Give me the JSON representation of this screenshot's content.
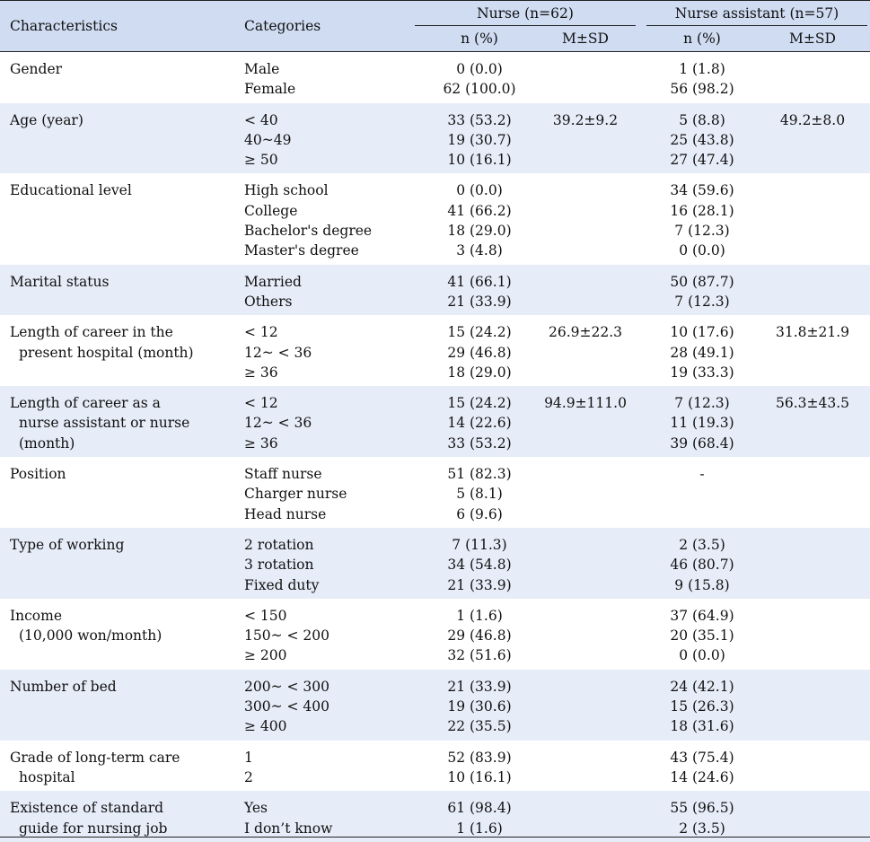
{
  "header": {
    "characteristics": "Characteristics",
    "categories": "Categories",
    "nurse_group": "Nurse (n=62)",
    "assistant_group": "Nurse assistant (n=57)",
    "n_pct": "n (%)",
    "msd": "M±SD"
  },
  "rows": [
    {
      "char": [
        "Gender"
      ],
      "cats": [
        "Male",
        "Female"
      ],
      "nurse_n": [
        "0 (0.0)",
        "62 (100.0)"
      ],
      "nurse_msd": "",
      "asst_n": [
        "1 (1.8)",
        "56 (98.2)"
      ],
      "asst_msd": ""
    },
    {
      "char": [
        "Age (year)"
      ],
      "cats": [
        "< 40",
        "40~49",
        "≥ 50"
      ],
      "nurse_n": [
        "33 (53.2)",
        "19 (30.7)",
        "10 (16.1)"
      ],
      "nurse_msd": "39.2±9.2",
      "asst_n": [
        "5 (8.8)",
        "25 (43.8)",
        "27 (47.4)"
      ],
      "asst_msd": "49.2±8.0"
    },
    {
      "char": [
        "Educational level"
      ],
      "cats": [
        "High school",
        "College",
        "Bachelor's degree",
        "Master's degree"
      ],
      "nurse_n": [
        "0 (0.0)",
        "41 (66.2)",
        "18 (29.0)",
        "3 (4.8)"
      ],
      "nurse_msd": "",
      "asst_n": [
        "34 (59.6)",
        "16 (28.1)",
        "7 (12.3)",
        "0 (0.0)"
      ],
      "asst_msd": ""
    },
    {
      "char": [
        "Marital status"
      ],
      "cats": [
        "Married",
        "Others"
      ],
      "nurse_n": [
        "41 (66.1)",
        "21 (33.9)"
      ],
      "nurse_msd": "",
      "asst_n": [
        "50 (87.7)",
        "7 (12.3)"
      ],
      "asst_msd": ""
    },
    {
      "char": [
        "Length of career in the",
        "present hospital (month)"
      ],
      "cats": [
        "< 12",
        "12~ < 36",
        "≥ 36"
      ],
      "nurse_n": [
        "15 (24.2)",
        "29 (46.8)",
        "18 (29.0)"
      ],
      "nurse_msd": "26.9±22.3",
      "asst_n": [
        "10 (17.6)",
        "28 (49.1)",
        "19 (33.3)"
      ],
      "asst_msd": "31.8±21.9"
    },
    {
      "char": [
        "Length of career as a",
        "nurse assistant or nurse",
        "(month)"
      ],
      "cats": [
        "< 12",
        "12~ < 36",
        "≥ 36"
      ],
      "nurse_n": [
        "15 (24.2)",
        "14 (22.6)",
        "33 (53.2)"
      ],
      "nurse_msd": "94.9±111.0",
      "asst_n": [
        "7 (12.3)",
        "11 (19.3)",
        "39 (68.4)"
      ],
      "asst_msd": "56.3±43.5"
    },
    {
      "char": [
        "Position"
      ],
      "cats": [
        "Staff nurse",
        "Charger nurse",
        "Head nurse"
      ],
      "nurse_n": [
        "51 (82.3)",
        "5 (8.1)",
        "6 (9.6)"
      ],
      "nurse_msd": "",
      "asst_n": [
        "-"
      ],
      "asst_msd": ""
    },
    {
      "char": [
        "Type of working"
      ],
      "cats": [
        "2 rotation",
        "3 rotation",
        "Fixed duty"
      ],
      "nurse_n": [
        "7 (11.3)",
        "34 (54.8)",
        "21 (33.9)"
      ],
      "nurse_msd": "",
      "asst_n": [
        "2 (3.5)",
        "46 (80.7)",
        "9 (15.8)"
      ],
      "asst_msd": ""
    },
    {
      "char": [
        "Income",
        "(10,000 won/month)"
      ],
      "cats": [
        "< 150",
        "150~ < 200",
        "≥ 200"
      ],
      "nurse_n": [
        "1 (1.6)",
        "29 (46.8)",
        "32 (51.6)"
      ],
      "nurse_msd": "",
      "asst_n": [
        "37 (64.9)",
        "20 (35.1)",
        "0 (0.0)"
      ],
      "asst_msd": ""
    },
    {
      "char": [
        "Number of bed"
      ],
      "cats": [
        "200~ < 300",
        "300~ < 400",
        "≥ 400"
      ],
      "nurse_n": [
        "21 (33.9)",
        "19 (30.6)",
        "22 (35.5)"
      ],
      "nurse_msd": "",
      "asst_n": [
        "24 (42.1)",
        "15 (26.3)",
        "18 (31.6)"
      ],
      "asst_msd": ""
    },
    {
      "char": [
        "Grade of long-term care",
        "hospital"
      ],
      "cats": [
        "1",
        "2"
      ],
      "nurse_n": [
        "52 (83.9)",
        "10 (16.1)"
      ],
      "nurse_msd": "",
      "asst_n": [
        "43 (75.4)",
        "14 (24.6)"
      ],
      "asst_msd": ""
    },
    {
      "char": [
        "Existence of standard",
        "guide for nursing job"
      ],
      "cats": [
        "Yes",
        "I don’t know"
      ],
      "nurse_n": [
        "61 (98.4)",
        "1 (1.6)"
      ],
      "nurse_msd": "",
      "asst_n": [
        "55 (96.5)",
        "2 (3.5)"
      ],
      "asst_msd": ""
    }
  ]
}
